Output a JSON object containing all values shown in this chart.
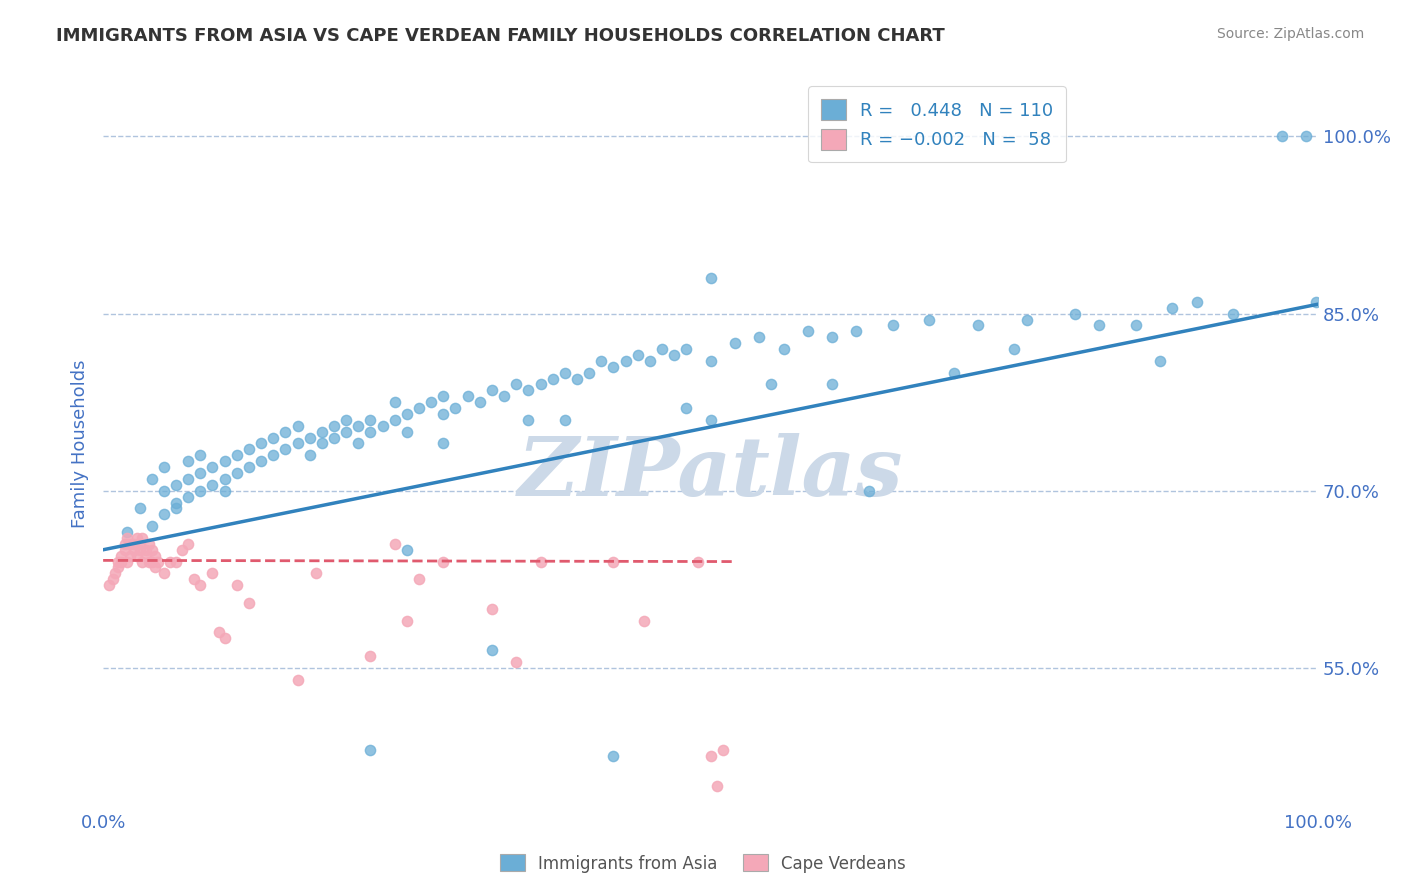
{
  "title": "IMMIGRANTS FROM ASIA VS CAPE VERDEAN FAMILY HOUSEHOLDS CORRELATION CHART",
  "source": "Source: ZipAtlas.com",
  "ylabel": "Family Households",
  "y_tick_labels": [
    "55.0%",
    "70.0%",
    "85.0%",
    "100.0%"
  ],
  "y_tick_values": [
    0.55,
    0.7,
    0.85,
    1.0
  ],
  "xlim": [
    0.0,
    1.0
  ],
  "ylim": [
    0.43,
    1.05
  ],
  "blue_color": "#6baed6",
  "pink_color": "#f4a8b8",
  "blue_line_color": "#3182bd",
  "pink_line_color": "#e05a6e",
  "title_color": "#333333",
  "axis_label_color": "#4472c4",
  "tick_color": "#4472c4",
  "grid_color": "#b0c4de",
  "watermark_color": "#ccd9e8",
  "blue_scatter_x": [
    0.02,
    0.03,
    0.04,
    0.04,
    0.05,
    0.05,
    0.05,
    0.06,
    0.06,
    0.06,
    0.07,
    0.07,
    0.07,
    0.08,
    0.08,
    0.08,
    0.09,
    0.09,
    0.1,
    0.1,
    0.1,
    0.11,
    0.11,
    0.12,
    0.12,
    0.13,
    0.13,
    0.14,
    0.14,
    0.15,
    0.15,
    0.16,
    0.16,
    0.17,
    0.17,
    0.18,
    0.18,
    0.19,
    0.19,
    0.2,
    0.2,
    0.21,
    0.21,
    0.22,
    0.22,
    0.23,
    0.24,
    0.24,
    0.25,
    0.25,
    0.26,
    0.27,
    0.28,
    0.28,
    0.29,
    0.3,
    0.31,
    0.32,
    0.33,
    0.34,
    0.35,
    0.36,
    0.37,
    0.38,
    0.39,
    0.4,
    0.41,
    0.42,
    0.43,
    0.44,
    0.45,
    0.46,
    0.47,
    0.48,
    0.5,
    0.52,
    0.54,
    0.56,
    0.58,
    0.6,
    0.62,
    0.65,
    0.68,
    0.72,
    0.76,
    0.8,
    0.85,
    0.88,
    0.9,
    0.93,
    0.97,
    0.99,
    0.998,
    0.5,
    0.63,
    0.32,
    0.22,
    0.25,
    0.42,
    0.87,
    0.5,
    0.38,
    0.28,
    0.35,
    0.48,
    0.55,
    0.6,
    0.7,
    0.75,
    0.82
  ],
  "blue_scatter_y": [
    0.665,
    0.685,
    0.67,
    0.71,
    0.68,
    0.7,
    0.72,
    0.685,
    0.705,
    0.69,
    0.695,
    0.71,
    0.725,
    0.7,
    0.715,
    0.73,
    0.705,
    0.72,
    0.71,
    0.725,
    0.7,
    0.715,
    0.73,
    0.72,
    0.735,
    0.725,
    0.74,
    0.73,
    0.745,
    0.735,
    0.75,
    0.74,
    0.755,
    0.745,
    0.73,
    0.75,
    0.74,
    0.755,
    0.745,
    0.76,
    0.75,
    0.755,
    0.74,
    0.76,
    0.75,
    0.755,
    0.76,
    0.775,
    0.765,
    0.75,
    0.77,
    0.775,
    0.765,
    0.78,
    0.77,
    0.78,
    0.775,
    0.785,
    0.78,
    0.79,
    0.785,
    0.79,
    0.795,
    0.8,
    0.795,
    0.8,
    0.81,
    0.805,
    0.81,
    0.815,
    0.81,
    0.82,
    0.815,
    0.82,
    0.81,
    0.825,
    0.83,
    0.82,
    0.835,
    0.83,
    0.835,
    0.84,
    0.845,
    0.84,
    0.845,
    0.85,
    0.84,
    0.855,
    0.86,
    0.85,
    1.0,
    1.0,
    0.86,
    0.88,
    0.7,
    0.565,
    0.48,
    0.65,
    0.475,
    0.81,
    0.76,
    0.76,
    0.74,
    0.76,
    0.77,
    0.79,
    0.79,
    0.8,
    0.82,
    0.84
  ],
  "pink_scatter_x": [
    0.005,
    0.008,
    0.01,
    0.012,
    0.012,
    0.015,
    0.015,
    0.018,
    0.018,
    0.02,
    0.02,
    0.022,
    0.022,
    0.025,
    0.025,
    0.028,
    0.028,
    0.03,
    0.03,
    0.032,
    0.032,
    0.035,
    0.035,
    0.038,
    0.038,
    0.04,
    0.04,
    0.043,
    0.043,
    0.045,
    0.05,
    0.055,
    0.06,
    0.065,
    0.07,
    0.075,
    0.08,
    0.09,
    0.095,
    0.1,
    0.11,
    0.12,
    0.16,
    0.175,
    0.22,
    0.24,
    0.25,
    0.26,
    0.28,
    0.32,
    0.34,
    0.36,
    0.42,
    0.445,
    0.49,
    0.5,
    0.505,
    0.51
  ],
  "pink_scatter_y": [
    0.62,
    0.625,
    0.63,
    0.64,
    0.635,
    0.645,
    0.64,
    0.65,
    0.655,
    0.64,
    0.66,
    0.655,
    0.645,
    0.65,
    0.655,
    0.645,
    0.66,
    0.65,
    0.655,
    0.64,
    0.66,
    0.65,
    0.645,
    0.64,
    0.655,
    0.65,
    0.64,
    0.645,
    0.635,
    0.64,
    0.63,
    0.64,
    0.64,
    0.65,
    0.655,
    0.625,
    0.62,
    0.63,
    0.58,
    0.575,
    0.62,
    0.605,
    0.54,
    0.63,
    0.56,
    0.655,
    0.59,
    0.625,
    0.64,
    0.6,
    0.555,
    0.64,
    0.64,
    0.59,
    0.64,
    0.475,
    0.45,
    0.48
  ],
  "blue_line_x": [
    0.0,
    1.0
  ],
  "blue_line_y": [
    0.65,
    0.858
  ],
  "pink_line_x": [
    0.0,
    0.52
  ],
  "pink_line_y": [
    0.641,
    0.64
  ],
  "watermark_text": "ZIPatlas",
  "legend_r1": "R =",
  "legend_v1": "0.448",
  "legend_n1_label": "N =",
  "legend_n1_val": "110",
  "legend_r2": "R =",
  "legend_v2": "-0.002",
  "legend_n2_label": "N =",
  "legend_n2_val": "58"
}
